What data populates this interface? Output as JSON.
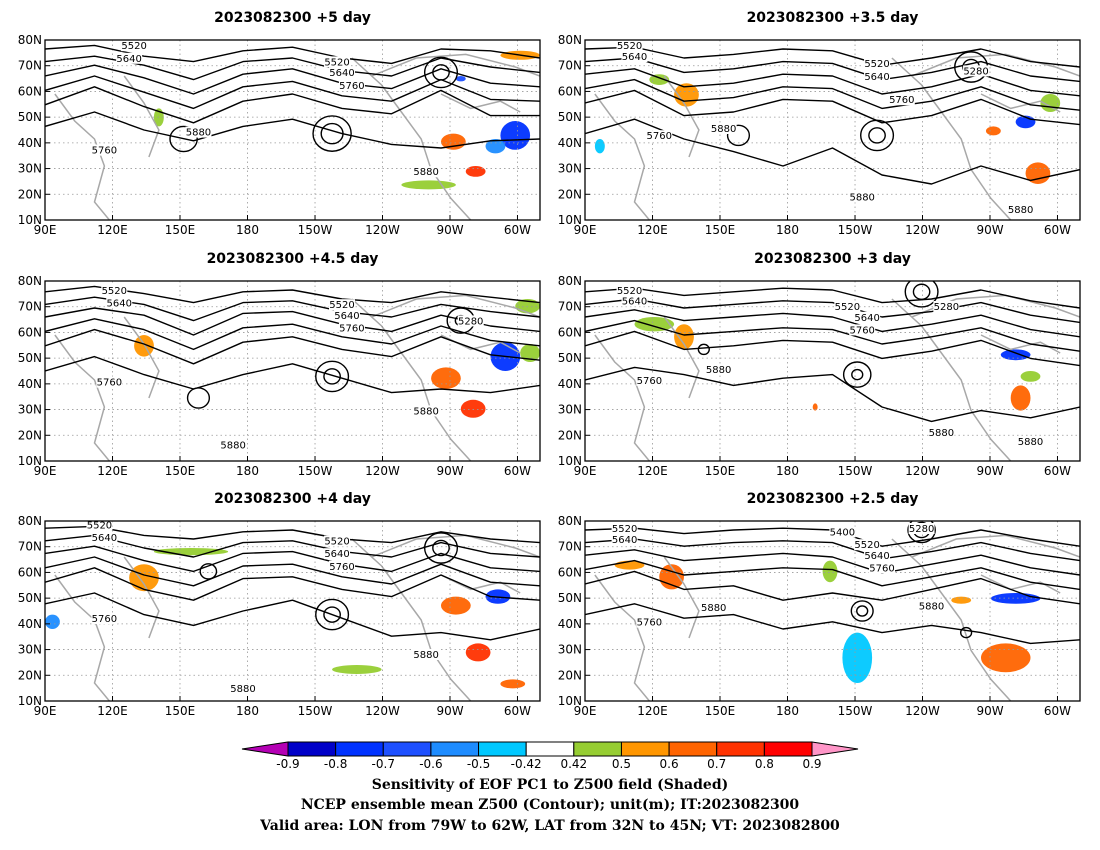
{
  "panels": [
    {
      "title": "2023082300  +5 day",
      "lats": [
        "80N",
        "70N",
        "60N",
        "50N",
        "40N",
        "30N",
        "20N",
        "10N"
      ],
      "lons": [
        "90E",
        "120E",
        "150E",
        "180",
        "150W",
        "120W",
        "90W",
        "60W"
      ],
      "contour_labels": [
        "5520",
        "5640",
        "5520",
        "5640",
        "5760",
        "5880",
        "5760",
        "5880"
      ]
    },
    {
      "title": "2023082300  +3.5 day",
      "lats": [
        "80N",
        "70N",
        "60N",
        "50N",
        "40N",
        "30N",
        "20N",
        "10N"
      ],
      "lons": [
        "90E",
        "120E",
        "150E",
        "180",
        "150W",
        "120W",
        "90W",
        "60W"
      ],
      "contour_labels": [
        "5520",
        "5640",
        "5520",
        "5640",
        "5280",
        "5760",
        "5760",
        "5880",
        "5880",
        "5880"
      ]
    },
    {
      "title": "2023082300  +4.5 day",
      "lats": [
        "80N",
        "70N",
        "60N",
        "50N",
        "40N",
        "30N",
        "20N",
        "10N"
      ],
      "lons": [
        "90E",
        "120E",
        "150E",
        "180",
        "150W",
        "120W",
        "90W",
        "60W"
      ],
      "contour_labels": [
        "5520",
        "5640",
        "5520",
        "5640",
        "5760",
        "5280",
        "5760",
        "5880",
        "5880"
      ]
    },
    {
      "title": "2023082300  +3 day",
      "lats": [
        "80N",
        "70N",
        "60N",
        "50N",
        "40N",
        "30N",
        "20N",
        "10N"
      ],
      "lons": [
        "90E",
        "120E",
        "150E",
        "180",
        "150W",
        "120W",
        "90W",
        "60W"
      ],
      "contour_labels": [
        "5520",
        "5640",
        "5520",
        "5280",
        "5640",
        "5760",
        "5760",
        "5880",
        "5880",
        "5880"
      ]
    },
    {
      "title": "2023082300  +4 day",
      "lats": [
        "80N",
        "70N",
        "60N",
        "50N",
        "40N",
        "30N",
        "20N",
        "10N"
      ],
      "lons": [
        "90E",
        "120E",
        "150E",
        "180",
        "150W",
        "120W",
        "90W",
        "60W"
      ],
      "contour_labels": [
        "5520",
        "5640",
        "5520",
        "5640",
        "5760",
        "5760",
        "5880",
        "5880"
      ]
    },
    {
      "title": "2023082300  +2.5 day",
      "lats": [
        "80N",
        "70N",
        "60N",
        "50N",
        "40N",
        "30N",
        "20N",
        "10N"
      ],
      "lons": [
        "90E",
        "120E",
        "150E",
        "180",
        "150W",
        "120W",
        "90W",
        "60W"
      ],
      "contour_labels": [
        "5520",
        "5640",
        "5400",
        "5280",
        "5520",
        "5640",
        "5760",
        "5880",
        "5760",
        "5880"
      ]
    }
  ],
  "colorbar": {
    "ticks": [
      "-0.9",
      "-0.8",
      "-0.7",
      "-0.6",
      "-0.5",
      "-0.42",
      "0.42",
      "0.5",
      "0.6",
      "0.7",
      "0.8",
      "0.9"
    ],
    "colors": [
      "#b400b4",
      "#0000c8",
      "#0032ff",
      "#1e50ff",
      "#1e8cff",
      "#00c8ff",
      "#ffffff",
      "#96cd32",
      "#ff9600",
      "#ff6400",
      "#ff3200",
      "#ff0000",
      "#ff96c8"
    ]
  },
  "caption": {
    "line1": "Sensitivity of EOF PC1 to Z500 field (Shaded)",
    "line2": "NCEP ensemble mean Z500 (Contour); unit(m); IT:2023082300",
    "line3": "Valid area: LON from 79W to 62W, LAT from 32N to 45N; VT: 2023082800"
  }
}
